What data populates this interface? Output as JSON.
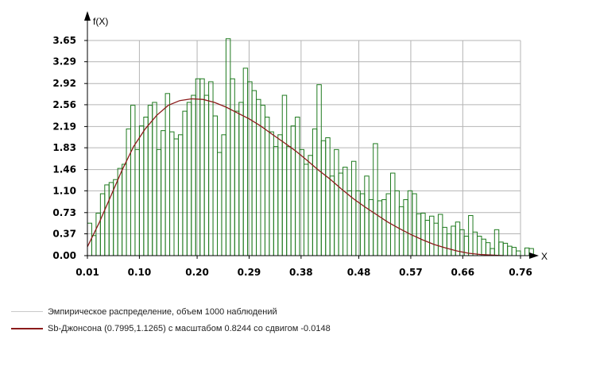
{
  "chart_data": {
    "type": "bar",
    "ylabel": "f(X)",
    "xlabel": "X",
    "xlim": [
      0.01,
      0.76
    ],
    "ylim": [
      0,
      3.65
    ],
    "grid": true,
    "x_ticks": [
      "0.01",
      "0.10",
      "0.20",
      "0.29",
      "0.38",
      "0.48",
      "0.57",
      "0.66",
      "0.76"
    ],
    "y_ticks": [
      "0.00",
      "0.37",
      "0.73",
      "1.10",
      "1.46",
      "1.83",
      "2.19",
      "2.56",
      "2.92",
      "3.29",
      "3.65"
    ],
    "bin_width": 0.0075,
    "histogram": [
      0.55,
      0.34,
      0.72,
      1.05,
      1.2,
      1.24,
      1.29,
      1.48,
      1.55,
      2.15,
      2.55,
      1.8,
      2.2,
      2.35,
      2.55,
      2.6,
      1.8,
      2.12,
      2.75,
      2.1,
      1.98,
      2.05,
      2.45,
      2.6,
      2.72,
      3.0,
      3.0,
      2.72,
      2.95,
      2.37,
      1.75,
      2.05,
      3.68,
      3.0,
      2.45,
      2.6,
      3.18,
      2.95,
      2.8,
      2.65,
      2.55,
      2.35,
      2.1,
      1.85,
      2.05,
      2.72,
      1.85,
      2.2,
      2.35,
      1.8,
      1.55,
      1.7,
      2.15,
      2.9,
      1.95,
      2.0,
      1.35,
      1.8,
      1.4,
      1.5,
      1.1,
      1.6,
      1.1,
      1.05,
      1.35,
      0.95,
      1.9,
      0.93,
      0.95,
      1.05,
      1.4,
      1.1,
      0.83,
      0.95,
      1.1,
      1.05,
      0.71,
      0.72,
      0.6,
      0.67,
      0.55,
      0.7,
      0.48,
      0.37,
      0.5,
      0.57,
      0.44,
      0.33,
      0.68,
      0.4,
      0.33,
      0.28,
      0.22,
      0.12,
      0.44,
      0.23,
      0.21,
      0.16,
      0.14,
      0.08,
      0.0,
      0.13,
      0.12,
      0.0
    ],
    "series": [
      {
        "name": "Эмпирическое распределение, объем 1000 наблюдений",
        "kind": "histogram",
        "color": "#1e7a1e"
      },
      {
        "name": "Sb-Джонсона (0.7995,1.1265) с масштабом 0.8244 со сдвигом -0.0148",
        "kind": "curve",
        "color": "#8b1a1a",
        "x": [
          0.01,
          0.03,
          0.05,
          0.07,
          0.09,
          0.11,
          0.13,
          0.15,
          0.17,
          0.19,
          0.21,
          0.23,
          0.25,
          0.27,
          0.29,
          0.31,
          0.33,
          0.35,
          0.37,
          0.39,
          0.41,
          0.43,
          0.45,
          0.47,
          0.49,
          0.51,
          0.53,
          0.55,
          0.57,
          0.59,
          0.61,
          0.63,
          0.65,
          0.67,
          0.69,
          0.71,
          0.73
        ],
        "y": [
          0.15,
          0.55,
          1.0,
          1.45,
          1.85,
          2.15,
          2.38,
          2.55,
          2.63,
          2.66,
          2.65,
          2.6,
          2.52,
          2.42,
          2.32,
          2.2,
          2.06,
          1.92,
          1.78,
          1.62,
          1.45,
          1.3,
          1.13,
          0.97,
          0.83,
          0.7,
          0.57,
          0.46,
          0.36,
          0.27,
          0.19,
          0.13,
          0.08,
          0.04,
          0.02,
          0.01,
          0.0
        ]
      }
    ]
  }
}
